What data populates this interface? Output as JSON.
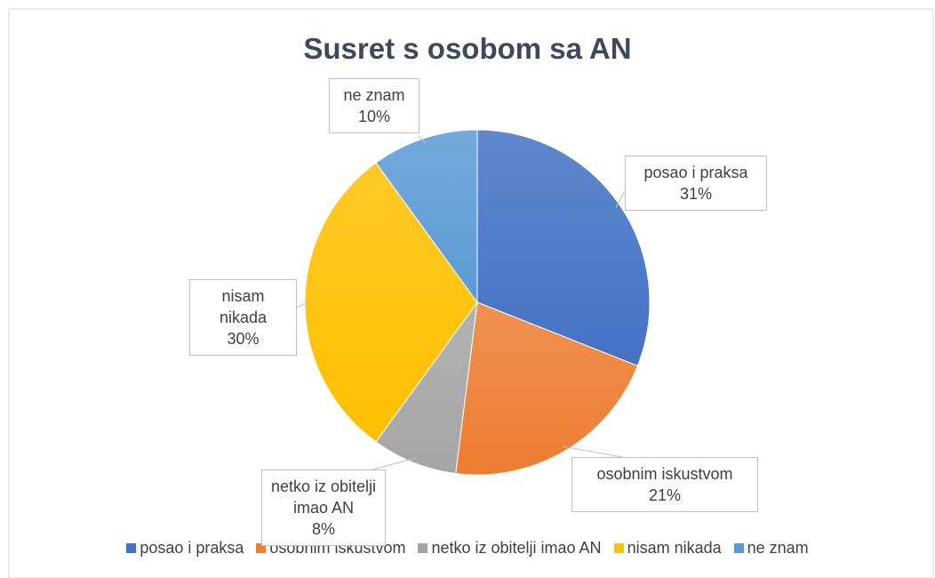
{
  "chart_data": {
    "type": "pie",
    "title": "Susret s osobom sa AN",
    "categories": [
      "posao i praksa",
      "osobnim iskustvom",
      "netko iz obitelji imao AN",
      "nisam nikada",
      "ne znam"
    ],
    "values": [
      31,
      21,
      8,
      30,
      10
    ],
    "value_labels": [
      "31%",
      "21%",
      "8%",
      "30%",
      "10%"
    ],
    "colors": [
      "#4472c4",
      "#ed7d31",
      "#a5a5a5",
      "#ffc000",
      "#5b9bd5"
    ],
    "legend": "bottom"
  }
}
